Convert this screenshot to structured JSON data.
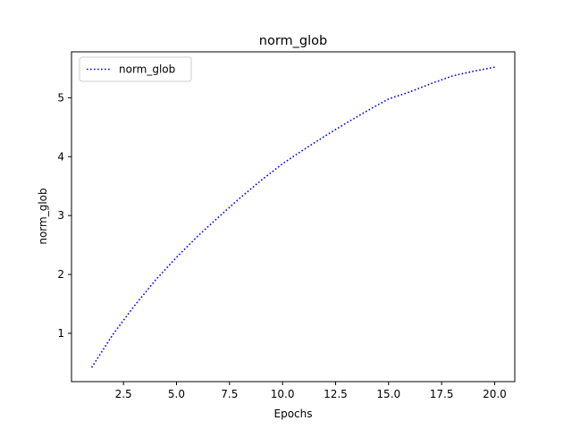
{
  "chart_data": {
    "type": "line",
    "title": "norm_glob",
    "xlabel": "Epochs",
    "ylabel": "norm_glob",
    "xlim": [
      0.05,
      20.95
    ],
    "ylim": [
      0.18,
      5.78
    ],
    "xticks": [
      2.5,
      5.0,
      7.5,
      10.0,
      12.5,
      15.0,
      17.5,
      20.0
    ],
    "xtick_labels": [
      "2.5",
      "5.0",
      "7.5",
      "10.0",
      "12.5",
      "15.0",
      "17.5",
      "20.0"
    ],
    "yticks": [
      1,
      2,
      3,
      4,
      5
    ],
    "ytick_labels": [
      "1",
      "2",
      "3",
      "4",
      "5"
    ],
    "grid": false,
    "legend_position": "top-left",
    "series": [
      {
        "name": "norm_glob",
        "color": "#0000ff",
        "line_style": "dotted",
        "x": [
          1,
          2,
          3,
          4,
          5,
          6,
          7,
          8,
          9,
          10,
          11,
          12,
          13,
          14,
          15,
          16,
          17,
          18,
          19,
          20
        ],
        "y": [
          0.42,
          0.98,
          1.46,
          1.9,
          2.29,
          2.65,
          2.98,
          3.3,
          3.6,
          3.88,
          4.12,
          4.35,
          4.57,
          4.78,
          4.98,
          5.1,
          5.24,
          5.37,
          5.45,
          5.52
        ]
      }
    ]
  }
}
